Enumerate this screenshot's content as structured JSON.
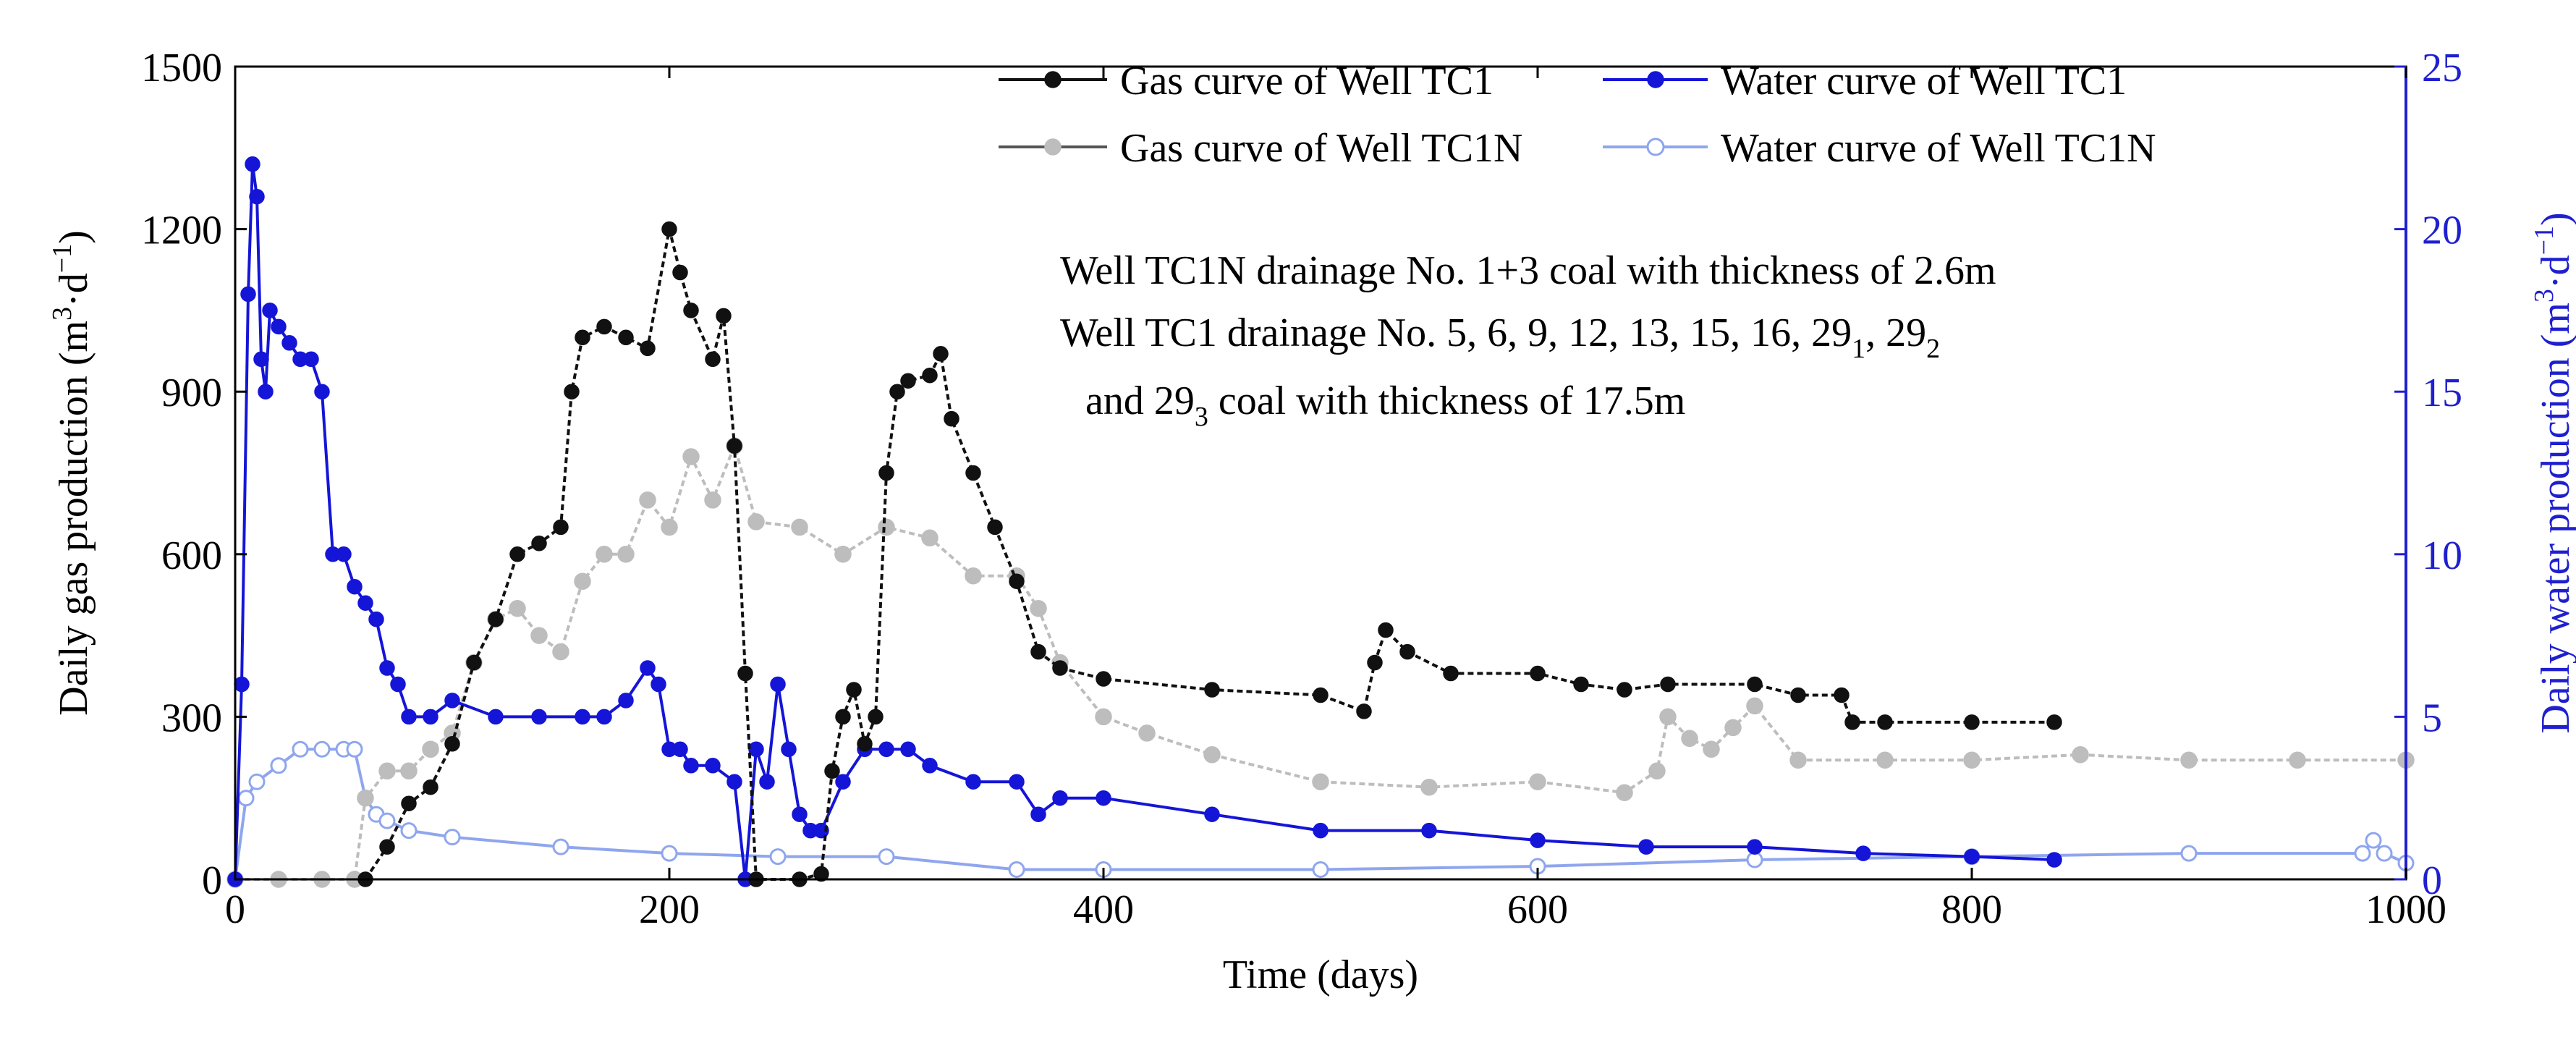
{
  "chart_data": {
    "type": "line",
    "xlabel": "Time (days)",
    "ylabel_left": "Daily gas production (m3·d−1)",
    "ylabel_left_parts": {
      "main": "Daily gas production (m",
      "sup1": "3",
      "mid": "·d",
      "sup2": "−1",
      "end": ")"
    },
    "ylabel_right": "Daily water production (m3·d−1)",
    "ylabel_right_parts": {
      "main": "Daily water production (m",
      "sup1": "3",
      "mid": "·d",
      "sup2": "−1",
      "end": ")"
    },
    "xlim": [
      0,
      1000
    ],
    "ylim_left": [
      0,
      1500
    ],
    "ylim_right": [
      0,
      25
    ],
    "x_ticks": [
      "0",
      "200",
      "400",
      "600",
      "800",
      "1000"
    ],
    "y_left_ticks": [
      "0",
      "300",
      "600",
      "900",
      "1200",
      "1500"
    ],
    "y_right_ticks": [
      "0",
      "5",
      "10",
      "15",
      "20",
      "25"
    ],
    "colors": {
      "gas_tc1": "#111111",
      "gas_tc1n": "#bdbdbd",
      "water_tc1": "#1515d8",
      "water_tc1n": "#8fa6ee",
      "right_axis": "#1f1fd0"
    },
    "legend": [
      {
        "name": "Gas curve of Well TC1",
        "series": "gas_tc1"
      },
      {
        "name": "Water curve of Well TC1",
        "series": "water_tc1"
      },
      {
        "name": "Gas curve of Well TC1N",
        "series": "gas_tc1n"
      },
      {
        "name": "Water curve of Well TC1N",
        "series": "water_tc1n"
      }
    ],
    "annotations": {
      "line1": "Well TC1N drainage No. 1+3 coal with thickness of 2.6m",
      "line2_main": "Well TC1 drainage No. 5, 6, 9, 12, 13, 15, 16, 29",
      "line2_sub1": "1",
      "line2_mid": ", 29",
      "line2_sub2": "2",
      "line3_a": "and 29",
      "line3_sub": "3",
      "line3_b": " coal with thickness of 17.5m"
    },
    "series": [
      {
        "name": "Gas curve of Well TC1",
        "axis": "left",
        "x": [
          60,
          70,
          80,
          90,
          100,
          110,
          120,
          130,
          140,
          150,
          155,
          160,
          170,
          180,
          190,
          200,
          205,
          210,
          220,
          225,
          230,
          235,
          240,
          260,
          270,
          275,
          280,
          285,
          290,
          295,
          300,
          305,
          310,
          320,
          325,
          330,
          340,
          350,
          360,
          370,
          380,
          400,
          450,
          500,
          520,
          525,
          530,
          540,
          560,
          600,
          620,
          640,
          660,
          700,
          720,
          740,
          745,
          760,
          800,
          838
        ],
        "y": [
          0,
          60,
          140,
          170,
          250,
          400,
          480,
          600,
          620,
          650,
          900,
          1000,
          1020,
          1000,
          980,
          1200,
          1120,
          1050,
          960,
          1040,
          800,
          380,
          0,
          0,
          10,
          200,
          300,
          350,
          250,
          300,
          750,
          900,
          920,
          930,
          970,
          850,
          750,
          650,
          550,
          420,
          390,
          370,
          350,
          340,
          310,
          400,
          460,
          420,
          380,
          380,
          360,
          350,
          360,
          360,
          340,
          340,
          290,
          290,
          290,
          290
        ]
      },
      {
        "name": "Water curve of Well TC1",
        "axis": "right",
        "x": [
          0,
          3,
          6,
          8,
          10,
          12,
          14,
          16,
          20,
          25,
          30,
          35,
          40,
          45,
          50,
          55,
          60,
          65,
          70,
          75,
          80,
          90,
          100,
          120,
          140,
          160,
          170,
          180,
          190,
          195,
          200,
          205,
          210,
          220,
          230,
          235,
          240,
          245,
          250,
          255,
          260,
          265,
          270,
          280,
          290,
          300,
          310,
          320,
          340,
          360,
          370,
          380,
          400,
          450,
          500,
          550,
          600,
          650,
          700,
          750,
          800,
          838
        ],
        "y": [
          0,
          6,
          18,
          22,
          21,
          16,
          15,
          17.5,
          17,
          16.5,
          16,
          16,
          15,
          10,
          10,
          9,
          8.5,
          8,
          6.5,
          6,
          5,
          5,
          5.5,
          5,
          5,
          5,
          5,
          5.5,
          6.5,
          6,
          4,
          4,
          3.5,
          3.5,
          3,
          0,
          4,
          3,
          6,
          4,
          2,
          1.5,
          1.5,
          3,
          4,
          4,
          4,
          3.5,
          3,
          3,
          2,
          2.5,
          2.5,
          2,
          1.5,
          1.5,
          1.2,
          1,
          1,
          0.8,
          0.7,
          0.6
        ]
      },
      {
        "name": "Gas curve of Well TC1N",
        "axis": "left",
        "x": [
          0,
          20,
          40,
          55,
          60,
          70,
          80,
          90,
          100,
          110,
          120,
          130,
          140,
          150,
          160,
          170,
          180,
          190,
          200,
          210,
          220,
          230,
          240,
          260,
          280,
          300,
          320,
          340,
          360,
          370,
          380,
          400,
          420,
          450,
          500,
          550,
          600,
          640,
          655,
          660,
          670,
          680,
          690,
          700,
          720,
          760,
          800,
          850,
          900,
          950,
          1000
        ],
        "y": [
          0,
          0,
          0,
          0,
          150,
          200,
          200,
          240,
          270,
          400,
          480,
          500,
          450,
          420,
          550,
          600,
          600,
          700,
          650,
          780,
          700,
          800,
          660,
          650,
          600,
          650,
          630,
          560,
          560,
          500,
          400,
          300,
          270,
          230,
          180,
          170,
          180,
          160,
          200,
          300,
          260,
          240,
          280,
          320,
          220,
          220,
          220,
          230,
          220,
          220,
          220
        ]
      },
      {
        "name": "Water curve of Well TC1N",
        "axis": "right",
        "x": [
          0,
          5,
          10,
          20,
          30,
          40,
          50,
          55,
          60,
          65,
          70,
          80,
          100,
          150,
          200,
          250,
          300,
          360,
          400,
          500,
          600,
          700,
          800,
          900,
          980,
          985,
          990,
          1000
        ],
        "y": [
          0,
          2.5,
          3,
          3.5,
          4,
          4,
          4,
          4,
          2.5,
          2,
          1.8,
          1.5,
          1.3,
          1,
          0.8,
          0.7,
          0.7,
          0.3,
          0.3,
          0.3,
          0.4,
          0.6,
          0.7,
          0.8,
          0.8,
          1.2,
          0.8,
          0.5
        ]
      }
    ]
  }
}
